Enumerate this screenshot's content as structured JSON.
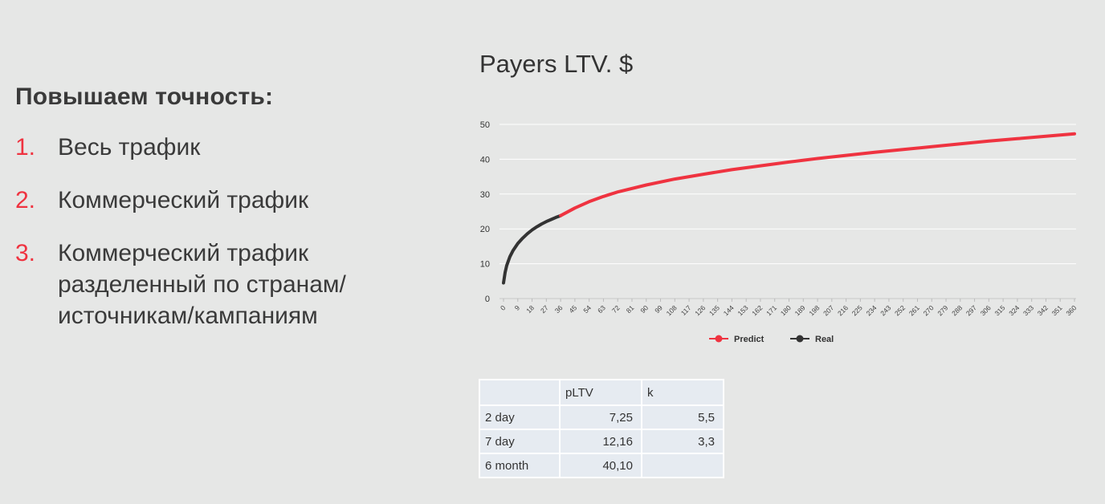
{
  "left": {
    "heading": "Повышаем точность:",
    "items": [
      {
        "num": "1.",
        "text": "Весь трафик"
      },
      {
        "num": "2.",
        "text": "Коммерческий трафик"
      },
      {
        "num": "3.",
        "text": "Коммерческий трафик разделенный по странам/ источникам/кампаниям"
      }
    ]
  },
  "colors": {
    "accent": "#ef3340",
    "real": "#333333",
    "background": "#e6e7e6"
  },
  "chart_data": {
    "type": "line",
    "title": "Payers LTV. $",
    "xlabel": "",
    "ylabel": "",
    "xlim": [
      0,
      360
    ],
    "ylim": [
      0,
      50
    ],
    "yticks": [
      0,
      10,
      20,
      30,
      40,
      50
    ],
    "xticks": [
      0,
      9,
      18,
      27,
      36,
      45,
      54,
      63,
      72,
      81,
      90,
      99,
      108,
      117,
      126,
      135,
      144,
      153,
      162,
      171,
      180,
      189,
      198,
      207,
      216,
      225,
      234,
      243,
      252,
      261,
      270,
      279,
      288,
      297,
      306,
      315,
      324,
      333,
      342,
      351,
      360
    ],
    "grid": true,
    "legend_position": "bottom",
    "series": [
      {
        "name": "Real",
        "color": "#333333",
        "x": [
          0,
          1,
          2,
          4,
          6,
          9,
          12,
          15,
          18,
          21,
          24,
          27,
          30,
          33,
          36
        ],
        "y": [
          4.5,
          7.5,
          9.5,
          12.0,
          13.8,
          15.8,
          17.3,
          18.6,
          19.7,
          20.6,
          21.4,
          22.1,
          22.7,
          23.3,
          23.8
        ]
      },
      {
        "name": "Predict",
        "color": "#ef3340",
        "x": [
          36,
          45,
          54,
          63,
          72,
          90,
          108,
          126,
          144,
          162,
          180,
          198,
          216,
          234,
          252,
          270,
          288,
          306,
          324,
          342,
          360
        ],
        "y": [
          23.8,
          26.0,
          27.8,
          29.3,
          30.6,
          32.6,
          34.3,
          35.7,
          37.0,
          38.1,
          39.2,
          40.2,
          41.1,
          42.0,
          42.8,
          43.6,
          44.4,
          45.2,
          45.9,
          46.6,
          47.3
        ]
      }
    ]
  },
  "table": {
    "header": [
      "",
      "pLTV",
      "k"
    ],
    "rows": [
      [
        "2 day",
        "7,25",
        "5,5"
      ],
      [
        "7 day",
        "12,16",
        "3,3"
      ],
      [
        "6 month",
        "40,10",
        ""
      ]
    ]
  }
}
